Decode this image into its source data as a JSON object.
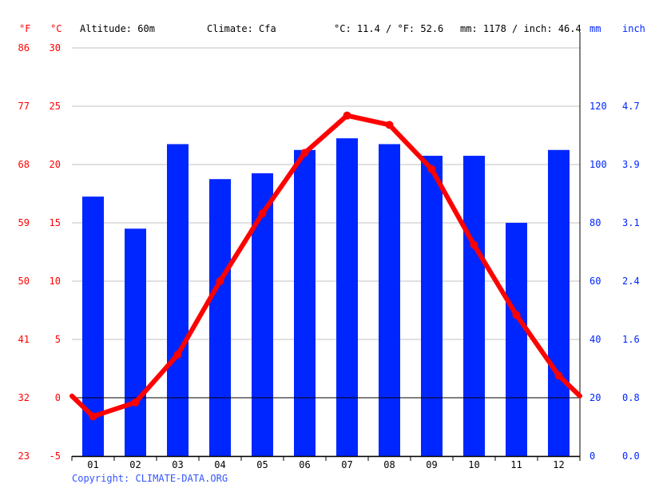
{
  "header": {
    "f_unit": "°F",
    "c_unit": "°C",
    "altitude": "Altitude: 60m",
    "climate": "Climate: Cfa",
    "avg_temp": "°C: 11.4 / °F: 52.6",
    "total_precip": "mm: 1178 / inch: 46.4",
    "mm_unit": "mm",
    "inch_unit": "inch"
  },
  "copyright": "Copyright: CLIMATE-DATA.ORG",
  "chart_data": {
    "type": "bar+line",
    "categories": [
      "01",
      "02",
      "03",
      "04",
      "05",
      "06",
      "07",
      "08",
      "09",
      "10",
      "11",
      "12"
    ],
    "series": [
      {
        "type": "bar",
        "axis": "right",
        "unit": "mm",
        "color": "#0026ff",
        "values": [
          89,
          78,
          107,
          95,
          97,
          105,
          109,
          107,
          103,
          103,
          80,
          105
        ]
      },
      {
        "type": "line",
        "axis": "left",
        "unit": "°C",
        "color": "#ff0000",
        "values": [
          -1.6,
          -0.4,
          3.7,
          10.0,
          15.8,
          21.0,
          24.2,
          23.4,
          19.6,
          13.1,
          7.1,
          1.9
        ]
      }
    ],
    "temp_axis": {
      "ylim": [
        -5,
        30
      ],
      "ticks_c": [
        "-5",
        "0",
        "5",
        "10",
        "15",
        "20",
        "25",
        "30"
      ],
      "ticks_f": [
        "23",
        "32",
        "41",
        "50",
        "59",
        "68",
        "77",
        "86"
      ]
    },
    "precip_axis": {
      "ylim": [
        0,
        140
      ],
      "ticks_mm": [
        "0",
        "20",
        "40",
        "60",
        "80",
        "100",
        "120"
      ],
      "ticks_inch": [
        "0.0",
        "0.8",
        "1.6",
        "2.4",
        "3.1",
        "3.9",
        "4.7"
      ]
    },
    "grid": true
  }
}
